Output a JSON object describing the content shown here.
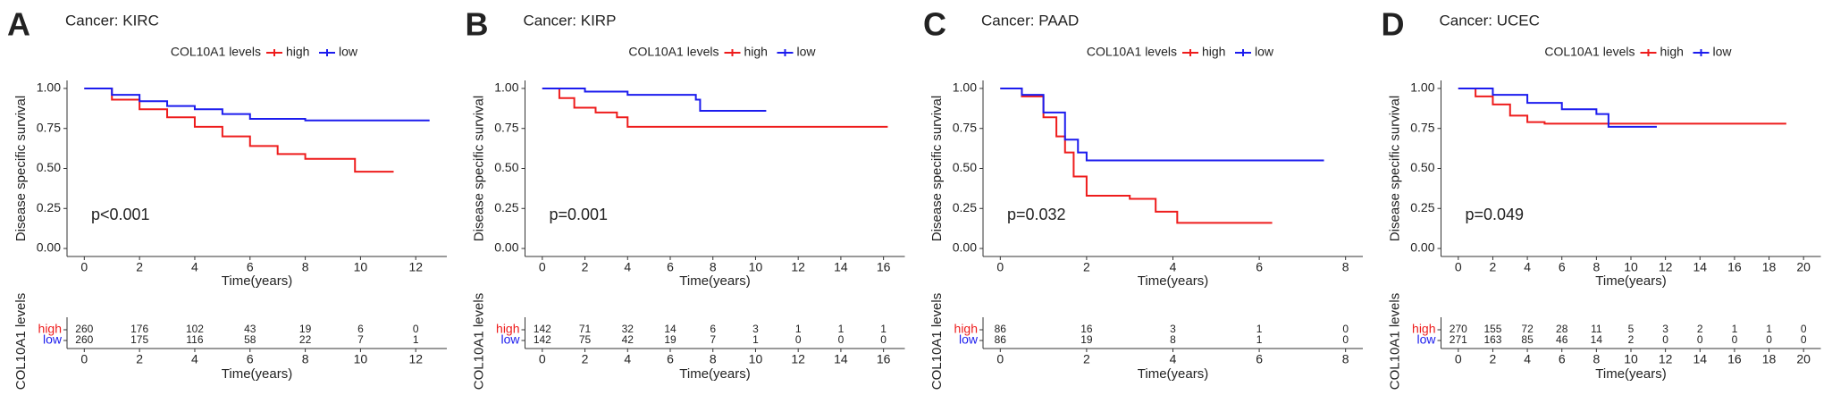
{
  "chart_data": [
    {
      "type": "line",
      "step": true,
      "panel": "A",
      "title": "Cancer: KIRC",
      "legend_title": "COL10A1 levels",
      "ylabel": "Disease specific survival",
      "xlabel": "Time(years)",
      "annotation": "p<0.001",
      "risk_ylabel": "COL10A1 levels",
      "xlim": [
        -0.625,
        13.125
      ],
      "xticks": [
        0,
        2,
        4,
        6,
        8,
        10,
        12
      ],
      "ylim": [
        -0.05,
        1.05
      ],
      "yticks": [
        {
          "value": 0,
          "label": "0.00"
        },
        {
          "value": 0.25,
          "label": "0.25"
        },
        {
          "value": 0.5,
          "label": "0.50"
        },
        {
          "value": 0.75,
          "label": "0.75"
        },
        {
          "value": 1,
          "label": "1.00"
        }
      ],
      "series": [
        {
          "name": "high",
          "color": "#ee1c1c",
          "x": [
            0,
            1,
            2,
            3,
            4,
            5,
            6,
            7,
            8,
            9.5,
            9.8,
            11.2
          ],
          "values": [
            1,
            0.93,
            0.87,
            0.82,
            0.76,
            0.7,
            0.64,
            0.59,
            0.56,
            0.56,
            0.48,
            0.48
          ],
          "at_risk": [
            260,
            176,
            102,
            43,
            19,
            6,
            0
          ]
        },
        {
          "name": "low",
          "color": "#1c1cee",
          "x": [
            0,
            1,
            2,
            3,
            4,
            5,
            6,
            8,
            12.5
          ],
          "values": [
            1,
            0.96,
            0.92,
            0.89,
            0.87,
            0.84,
            0.81,
            0.8,
            0.8
          ],
          "at_risk": [
            260,
            175,
            116,
            58,
            22,
            7,
            1
          ]
        }
      ]
    },
    {
      "type": "line",
      "step": true,
      "panel": "B",
      "title": "Cancer: KIRP",
      "legend_title": "COL10A1 levels",
      "ylabel": "Disease specific survival",
      "xlabel": "Time(years)",
      "annotation": "p=0.001",
      "risk_ylabel": "COL10A1 levels",
      "xlim": [
        -0.81,
        17
      ],
      "xticks": [
        0,
        2,
        4,
        6,
        8,
        10,
        12,
        14,
        16
      ],
      "ylim": [
        -0.05,
        1.05
      ],
      "yticks": [
        {
          "value": 0,
          "label": "0.00"
        },
        {
          "value": 0.25,
          "label": "0.25"
        },
        {
          "value": 0.5,
          "label": "0.50"
        },
        {
          "value": 0.75,
          "label": "0.75"
        },
        {
          "value": 1,
          "label": "1.00"
        }
      ],
      "series": [
        {
          "name": "high",
          "color": "#ee1c1c",
          "x": [
            0,
            0.8,
            1.5,
            2.5,
            3.5,
            4,
            16.2
          ],
          "values": [
            1,
            0.94,
            0.88,
            0.85,
            0.82,
            0.76,
            0.76
          ],
          "at_risk": [
            142,
            71,
            32,
            14,
            6,
            3,
            1,
            1,
            1
          ]
        },
        {
          "name": "low",
          "color": "#1c1cee",
          "x": [
            0,
            2,
            4,
            7.2,
            7.4,
            10.5
          ],
          "values": [
            1,
            0.98,
            0.96,
            0.93,
            0.86,
            0.86
          ],
          "at_risk": [
            142,
            75,
            42,
            19,
            7,
            1,
            0,
            0,
            0
          ]
        }
      ]
    },
    {
      "type": "line",
      "step": true,
      "panel": "C",
      "title": "Cancer: PAAD",
      "legend_title": "COL10A1 levels",
      "ylabel": "Disease specific survival",
      "xlabel": "Time(years)",
      "annotation": "p=0.032",
      "risk_ylabel": "COL10A1 levels",
      "xlim": [
        -0.4,
        8.4
      ],
      "xticks": [
        0,
        2,
        4,
        6,
        8
      ],
      "ylim": [
        -0.05,
        1.05
      ],
      "yticks": [
        {
          "value": 0,
          "label": "0.00"
        },
        {
          "value": 0.25,
          "label": "0.25"
        },
        {
          "value": 0.5,
          "label": "0.50"
        },
        {
          "value": 0.75,
          "label": "0.75"
        },
        {
          "value": 1,
          "label": "1.00"
        }
      ],
      "series": [
        {
          "name": "high",
          "color": "#ee1c1c",
          "x": [
            0,
            0.5,
            1,
            1.3,
            1.5,
            1.7,
            2,
            3,
            3.6,
            4.1,
            6.3
          ],
          "values": [
            1,
            0.95,
            0.82,
            0.7,
            0.6,
            0.45,
            0.33,
            0.31,
            0.23,
            0.16,
            0.16
          ],
          "at_risk": [
            86,
            16,
            3,
            1,
            0
          ]
        },
        {
          "name": "low",
          "color": "#1c1cee",
          "x": [
            0,
            0.5,
            1,
            1.5,
            1.8,
            2,
            7.5
          ],
          "values": [
            1,
            0.96,
            0.85,
            0.68,
            0.6,
            0.55,
            0.55
          ],
          "at_risk": [
            86,
            19,
            8,
            1,
            0
          ]
        }
      ]
    },
    {
      "type": "line",
      "step": true,
      "panel": "D",
      "title": "Cancer: UCEC",
      "legend_title": "COL10A1 levels",
      "ylabel": "Disease specific survival",
      "xlabel": "Time(years)",
      "annotation": "p=0.049",
      "risk_ylabel": "COL10A1 levels",
      "xlim": [
        -1,
        21
      ],
      "xticks": [
        0,
        2,
        4,
        6,
        8,
        10,
        12,
        14,
        16,
        18,
        20
      ],
      "ylim": [
        -0.05,
        1.05
      ],
      "yticks": [
        {
          "value": 0,
          "label": "0.00"
        },
        {
          "value": 0.25,
          "label": "0.25"
        },
        {
          "value": 0.5,
          "label": "0.50"
        },
        {
          "value": 0.75,
          "label": "0.75"
        },
        {
          "value": 1,
          "label": "1.00"
        }
      ],
      "series": [
        {
          "name": "high",
          "color": "#ee1c1c",
          "x": [
            0,
            1,
            2,
            3,
            4,
            5,
            19
          ],
          "values": [
            1,
            0.95,
            0.9,
            0.83,
            0.79,
            0.78,
            0.78
          ],
          "at_risk": [
            270,
            155,
            72,
            28,
            11,
            5,
            3,
            2,
            1,
            1,
            0
          ]
        },
        {
          "name": "low",
          "color": "#1c1cee",
          "x": [
            0,
            2,
            4,
            6,
            8,
            8.7,
            11.5
          ],
          "values": [
            1,
            0.96,
            0.91,
            0.87,
            0.84,
            0.76,
            0.76
          ],
          "at_risk": [
            271,
            163,
            85,
            46,
            14,
            2,
            0,
            0,
            0,
            0,
            0
          ]
        }
      ]
    }
  ]
}
